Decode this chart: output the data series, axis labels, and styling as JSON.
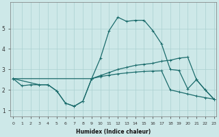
{
  "xlabel": "Humidex (Indice chaleur)",
  "bg_color": "#cde8e8",
  "grid_color": "#aad0d0",
  "line_color": "#1a6b6b",
  "line1_x": [
    0,
    1,
    2,
    3,
    4,
    5,
    6,
    7,
    8,
    9,
    10,
    11,
    12,
    13,
    14,
    15,
    16,
    17,
    18,
    19,
    20,
    21,
    22,
    23
  ],
  "line1_y": [
    2.55,
    2.2,
    2.25,
    2.25,
    2.25,
    1.95,
    1.35,
    1.2,
    1.45,
    2.55,
    3.55,
    4.9,
    5.55,
    5.35,
    5.4,
    5.4,
    4.9,
    4.25,
    3.0,
    2.95,
    2.05,
    2.5,
    2.0,
    1.55
  ],
  "line2_x": [
    0,
    9,
    10,
    11,
    12,
    13,
    14,
    15,
    16,
    17,
    18,
    19,
    20,
    21,
    22,
    23
  ],
  "line2_y": [
    2.55,
    2.55,
    2.7,
    2.85,
    3.0,
    3.1,
    3.2,
    3.25,
    3.3,
    3.4,
    3.45,
    3.55,
    3.6,
    2.5,
    2.0,
    1.55
  ],
  "line3_x": [
    0,
    3,
    4,
    5,
    6,
    7,
    8,
    9,
    10,
    11,
    12,
    13,
    14,
    15,
    16,
    17,
    18,
    19,
    20,
    21,
    22,
    23
  ],
  "line3_y": [
    2.55,
    2.25,
    2.25,
    1.95,
    1.35,
    1.2,
    1.45,
    2.55,
    2.65,
    2.72,
    2.78,
    2.83,
    2.87,
    2.9,
    2.92,
    2.93,
    2.0,
    1.9,
    1.8,
    1.7,
    1.62,
    1.55
  ],
  "xlim": [
    -0.3,
    23.3
  ],
  "ylim": [
    0.7,
    6.3
  ],
  "yticks": [
    1,
    2,
    3,
    4,
    5
  ],
  "xticks": [
    0,
    1,
    2,
    3,
    4,
    5,
    6,
    7,
    8,
    9,
    10,
    11,
    12,
    13,
    14,
    15,
    16,
    17,
    18,
    19,
    20,
    21,
    22,
    23
  ],
  "xlabel_fontsize": 5.5,
  "tick_fontsize_x": 4.5,
  "tick_fontsize_y": 5.5
}
